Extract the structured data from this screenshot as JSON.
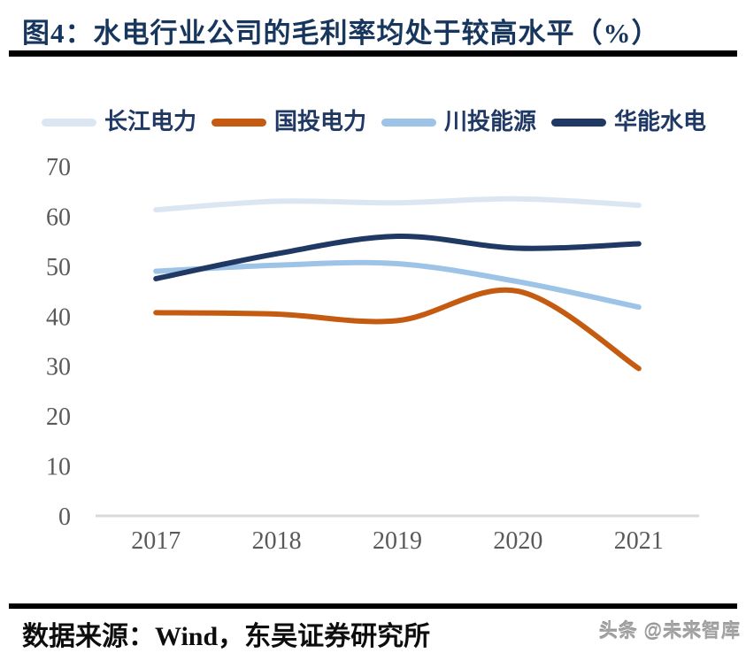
{
  "title": "图4：水电行业公司的毛利率均处于较高水平（%）",
  "footer": {
    "source": "数据来源：Wind，东吴证券研究所",
    "watermark": "头条 @未来智库"
  },
  "colors": {
    "title_text": "#17365d",
    "legend_text": "#1f3864",
    "axis_text": "#595959",
    "axis_line": "#d9d9d9",
    "rule": "#000000"
  },
  "chart_data": {
    "type": "line",
    "title": "水电行业公司的毛利率均处于较高水平（%）",
    "categories": [
      "2017",
      "2018",
      "2019",
      "2020",
      "2021"
    ],
    "series": [
      {
        "name": "长江电力",
        "color": "#dce6f2",
        "values": [
          61.3,
          63.0,
          62.7,
          63.5,
          62.2
        ]
      },
      {
        "name": "国投电力",
        "color": "#c55a11",
        "values": [
          40.7,
          40.4,
          39.1,
          45.0,
          29.5
        ]
      },
      {
        "name": "川投能源",
        "color": "#9dc3e6",
        "values": [
          49.0,
          50.2,
          50.5,
          46.9,
          41.8
        ]
      },
      {
        "name": "华能水电",
        "color": "#1f3864",
        "values": [
          47.5,
          52.5,
          56.0,
          53.6,
          54.5
        ]
      }
    ],
    "xlabel": "",
    "ylabel": "",
    "ylim": [
      0,
      70
    ],
    "yticks": [
      0,
      10,
      20,
      30,
      40,
      50,
      60,
      70
    ],
    "grid": false,
    "legend_position": "top",
    "line_style": "smooth",
    "unit": "%"
  }
}
